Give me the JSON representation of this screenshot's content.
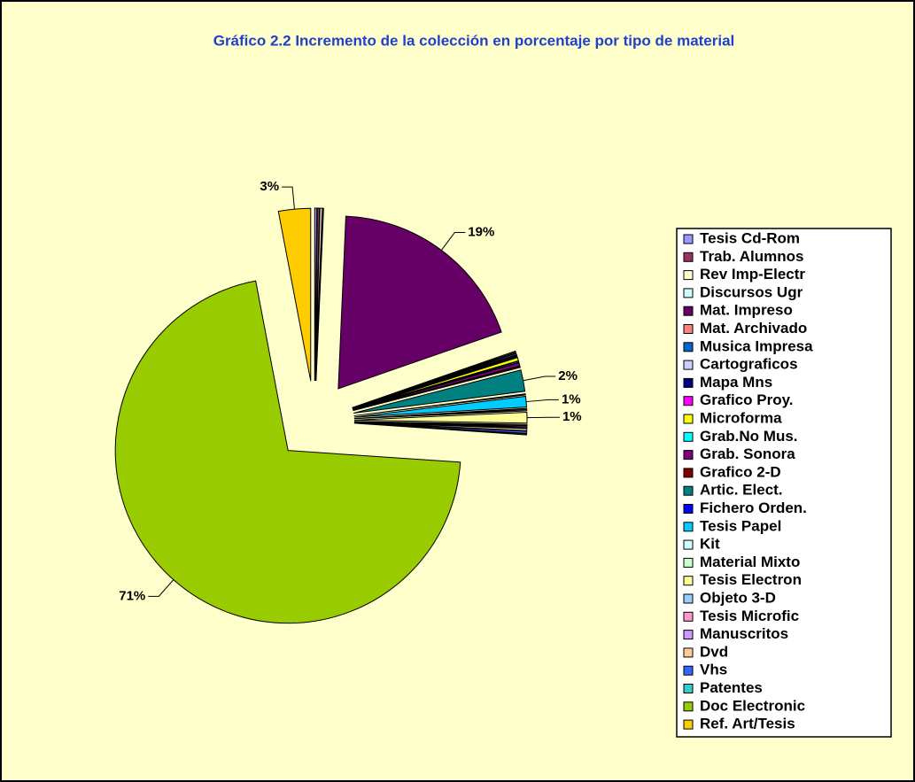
{
  "chart_data": {
    "type": "pie",
    "title": "Gráfico 2.2 Incremento de la colección en porcentaje por tipo de material",
    "categories": [
      "Tesis Cd-Rom",
      "Trab. Alumnos",
      "Rev Imp-Electr",
      "Discursos Ugr",
      "Mat. Impreso",
      "Mat. Archivado",
      "Musica Impresa",
      "Cartograficos",
      "Mapa Mns",
      "Grafico Proy.",
      "Microforma",
      "Grab.No Mus.",
      "Grab. Sonora",
      "Grafico 2-D",
      "Artic. Elect.",
      "Fichero Orden.",
      "Tesis Papel",
      "Kit",
      "Material Mixto",
      "Tesis Electron",
      "Objeto 3-D",
      "Tesis Microfic",
      "Manuscritos",
      "Dvd",
      "Vhs",
      "Patentes",
      "Doc Electronic",
      "Ref. Art/Tesis"
    ],
    "values": [
      0.2,
      0.2,
      0.2,
      0.1,
      19,
      0.1,
      0.1,
      0.1,
      0.1,
      0.1,
      0.3,
      0.1,
      0.3,
      0.1,
      2,
      0.1,
      1,
      0.1,
      0.1,
      1,
      0.1,
      0.1,
      0.1,
      0.2,
      0.2,
      0.1,
      71,
      3
    ],
    "value_labels": [
      null,
      null,
      null,
      null,
      "19%",
      null,
      null,
      null,
      null,
      null,
      null,
      null,
      null,
      null,
      "2%",
      null,
      "1%",
      null,
      null,
      "1%",
      null,
      null,
      null,
      null,
      null,
      null,
      "71%",
      "3%"
    ],
    "colors": [
      "#9999FF",
      "#993366",
      "#FFFFCC",
      "#CCFFFF",
      "#660066",
      "#FF8080",
      "#0066CC",
      "#CCCCFF",
      "#000080",
      "#FF00FF",
      "#FFFF00",
      "#00FFFF",
      "#800080",
      "#800000",
      "#008080",
      "#0000FF",
      "#00CCFF",
      "#CCFFFF",
      "#CCFFCC",
      "#FFFF99",
      "#99CCFF",
      "#FF99CC",
      "#CC99FF",
      "#FFCC99",
      "#3366FF",
      "#33CCCC",
      "#99CC00",
      "#FFCC00"
    ],
    "legend": "right"
  }
}
